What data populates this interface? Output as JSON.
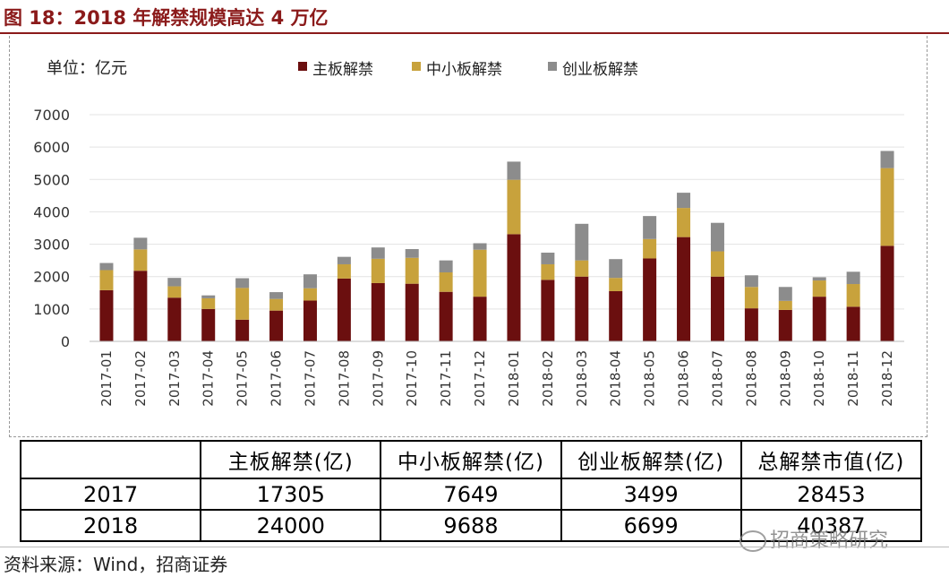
{
  "figure_title": "图 18：2018 年解禁规模高达 4 万亿",
  "unit_label": "单位：亿元",
  "source": "资料来源：Wind，招商证券",
  "watermark": "招商策略研究",
  "colors": {
    "main": "#6b0f0f",
    "sme": "#c8a23c",
    "gem": "#8c8c8c",
    "title": "#8b1a1a"
  },
  "chart_data": {
    "type": "bar",
    "stacked": true,
    "title": "",
    "ylabel": "单位：亿元",
    "ylim": [
      0,
      7000
    ],
    "yticks": [
      0,
      1000,
      2000,
      3000,
      4000,
      5000,
      6000,
      7000
    ],
    "grid": true,
    "legend_position": "top",
    "categories": [
      "2017-01",
      "2017-02",
      "2017-03",
      "2017-04",
      "2017-05",
      "2017-06",
      "2017-07",
      "2017-08",
      "2017-09",
      "2017-10",
      "2017-11",
      "2017-12",
      "2018-01",
      "2018-02",
      "2018-03",
      "2018-04",
      "2018-05",
      "2018-06",
      "2018-07",
      "2018-08",
      "2018-09",
      "2018-10",
      "2018-11",
      "2018-12"
    ],
    "series": [
      {
        "name": "主板解禁",
        "color": "#6b0f0f",
        "values": [
          1580,
          2180,
          1350,
          1000,
          670,
          950,
          1260,
          1940,
          1800,
          1780,
          1530,
          1380,
          3310,
          1900,
          2000,
          1550,
          2560,
          3220,
          2000,
          1020,
          970,
          1380,
          1070,
          2950
        ]
      },
      {
        "name": "中小板解禁",
        "color": "#c8a23c",
        "values": [
          620,
          660,
          350,
          330,
          980,
          360,
          380,
          440,
          750,
          800,
          600,
          1450,
          1680,
          480,
          500,
          410,
          600,
          900,
          780,
          660,
          280,
          500,
          700,
          2400
        ]
      },
      {
        "name": "创业板解禁",
        "color": "#8c8c8c",
        "values": [
          220,
          360,
          260,
          90,
          300,
          210,
          430,
          230,
          350,
          270,
          370,
          200,
          560,
          360,
          1130,
          580,
          710,
          470,
          880,
          360,
          430,
          100,
          380,
          530
        ]
      }
    ]
  },
  "table": {
    "headers": [
      "",
      "主板解禁(亿)",
      "中小板解禁(亿)",
      "创业板解禁(亿)",
      "总解禁市值(亿)"
    ],
    "rows": [
      [
        "2017",
        "17305",
        "7649",
        "3499",
        "28453"
      ],
      [
        "2018",
        "24000",
        "9688",
        "6699",
        "40387"
      ]
    ]
  }
}
